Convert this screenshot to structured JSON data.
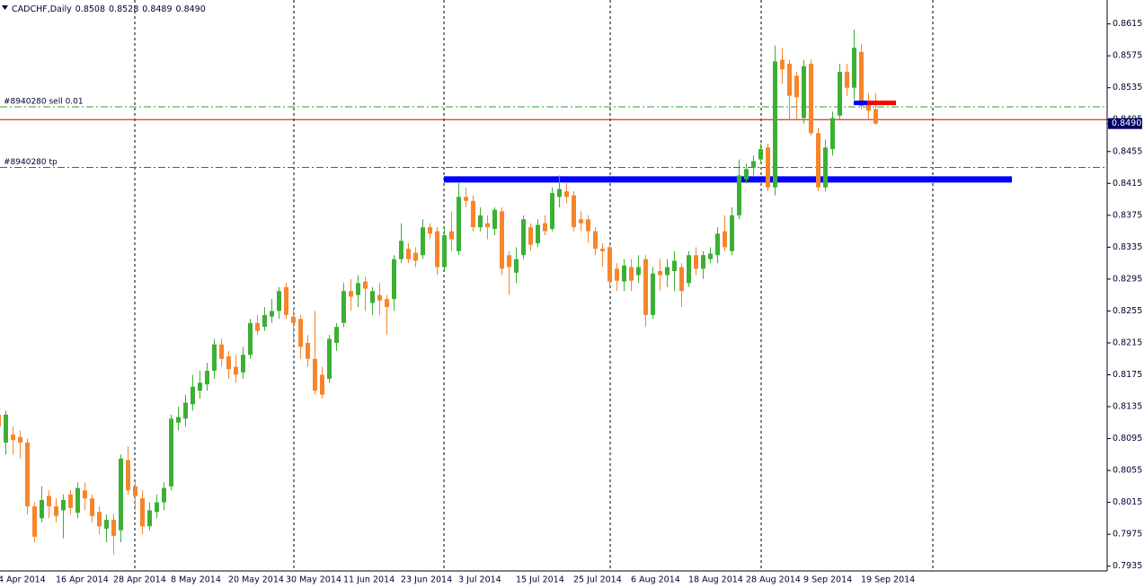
{
  "chart_data": {
    "type": "candlestick",
    "title": "CADCHF,Daily",
    "header_values": [
      "0.8508",
      "0.8528",
      "0.8489",
      "0.8490"
    ],
    "up_color": "#3cb034",
    "down_color": "#f7852a",
    "ylim": [
      0.7929,
      0.8645
    ],
    "yticks": [
      0.7935,
      0.7975,
      0.8015,
      0.8055,
      0.8095,
      0.8135,
      0.8175,
      0.8215,
      0.8255,
      0.8295,
      0.8335,
      0.8375,
      0.8415,
      0.8455,
      0.8495,
      0.8535,
      0.8575,
      0.8615
    ],
    "price": {
      "value": 0.849,
      "label": "0.8490"
    },
    "levels": [
      {
        "label": "#8940280 sell 0.01",
        "value": 0.8511,
        "color": "#2ca02c",
        "style": "dashdot"
      },
      {
        "label": "#8940280 tp",
        "value": 0.8435,
        "color": "#d62728",
        "style": "dashdot"
      },
      {
        "value": 0.8495,
        "color": "#d00000",
        "style": "solid"
      }
    ],
    "zone": {
      "value": 0.842,
      "color": "#0000ff"
    },
    "markers": [
      {
        "value": 0.8516,
        "color": "#0000ff"
      },
      {
        "value": 0.8516,
        "color": "#ff0000"
      }
    ],
    "candles": [
      {
        "date": "4 Apr 2014",
        "o": 0.8125,
        "h": 0.8135,
        "l": 0.8095,
        "c": 0.811
      },
      {
        "date": null,
        "o": 0.809,
        "h": 0.813,
        "l": 0.8075,
        "c": 0.8125
      },
      {
        "date": null,
        "o": 0.81,
        "h": 0.811,
        "l": 0.8075,
        "c": 0.8093
      },
      {
        "date": null,
        "o": 0.8097,
        "h": 0.8105,
        "l": 0.807,
        "c": 0.809
      },
      {
        "date": null,
        "o": 0.809,
        "h": 0.8095,
        "l": 0.8,
        "c": 0.801
      },
      {
        "date": null,
        "o": 0.801,
        "h": 0.8015,
        "l": 0.7965,
        "c": 0.7972
      },
      {
        "date": null,
        "o": 0.7995,
        "h": 0.8035,
        "l": 0.799,
        "c": 0.8018
      },
      {
        "date": null,
        "o": 0.8023,
        "h": 0.803,
        "l": 0.7995,
        "c": 0.801
      },
      {
        "date": "16 Apr 2014",
        "o": 0.801,
        "h": 0.802,
        "l": 0.799,
        "c": 0.7998
      },
      {
        "date": null,
        "o": 0.8005,
        "h": 0.8025,
        "l": 0.797,
        "c": 0.8018
      },
      {
        "date": null,
        "o": 0.8025,
        "h": 0.803,
        "l": 0.8,
        "c": 0.8008
      },
      {
        "date": null,
        "o": 0.8002,
        "h": 0.804,
        "l": 0.7995,
        "c": 0.8033
      },
      {
        "date": null,
        "o": 0.803,
        "h": 0.804,
        "l": 0.8005,
        "c": 0.802
      },
      {
        "date": null,
        "o": 0.802,
        "h": 0.8025,
        "l": 0.799,
        "c": 0.7998
      },
      {
        "date": null,
        "o": 0.8003,
        "h": 0.801,
        "l": 0.7975,
        "c": 0.7985
      },
      {
        "date": null,
        "o": 0.7982,
        "h": 0.8,
        "l": 0.7965,
        "c": 0.7993
      },
      {
        "date": "28 Apr 2014",
        "o": 0.7993,
        "h": 0.8,
        "l": 0.795,
        "c": 0.7973
      },
      {
        "date": null,
        "o": 0.798,
        "h": 0.8075,
        "l": 0.7965,
        "c": 0.807
      },
      {
        "date": null,
        "o": 0.8068,
        "h": 0.8085,
        "l": 0.8025,
        "c": 0.803
      },
      {
        "date": null,
        "o": 0.8035,
        "h": 0.804,
        "l": 0.8005,
        "c": 0.8023
      },
      {
        "date": null,
        "o": 0.802,
        "h": 0.803,
        "l": 0.7975,
        "c": 0.7985
      },
      {
        "date": null,
        "o": 0.7985,
        "h": 0.8015,
        "l": 0.798,
        "c": 0.8005
      },
      {
        "date": null,
        "o": 0.8003,
        "h": 0.8025,
        "l": 0.7995,
        "c": 0.8015
      },
      {
        "date": null,
        "o": 0.8015,
        "h": 0.804,
        "l": 0.8005,
        "c": 0.8033
      },
      {
        "date": "8 May 2014",
        "o": 0.8035,
        "h": 0.8125,
        "l": 0.803,
        "c": 0.812
      },
      {
        "date": null,
        "o": 0.8115,
        "h": 0.8135,
        "l": 0.8105,
        "c": 0.8122
      },
      {
        "date": null,
        "o": 0.812,
        "h": 0.815,
        "l": 0.811,
        "c": 0.814
      },
      {
        "date": null,
        "o": 0.8138,
        "h": 0.8175,
        "l": 0.813,
        "c": 0.816
      },
      {
        "date": null,
        "o": 0.8155,
        "h": 0.818,
        "l": 0.8145,
        "c": 0.8165
      },
      {
        "date": null,
        "o": 0.8163,
        "h": 0.819,
        "l": 0.8155,
        "c": 0.818
      },
      {
        "date": null,
        "o": 0.818,
        "h": 0.822,
        "l": 0.817,
        "c": 0.8213
      },
      {
        "date": null,
        "o": 0.8213,
        "h": 0.822,
        "l": 0.8185,
        "c": 0.8195
      },
      {
        "date": "20 May 2014",
        "o": 0.8198,
        "h": 0.8205,
        "l": 0.817,
        "c": 0.8182
      },
      {
        "date": null,
        "o": 0.8185,
        "h": 0.82,
        "l": 0.8165,
        "c": 0.8175
      },
      {
        "date": null,
        "o": 0.8178,
        "h": 0.821,
        "l": 0.817,
        "c": 0.82
      },
      {
        "date": null,
        "o": 0.82,
        "h": 0.8245,
        "l": 0.8195,
        "c": 0.824
      },
      {
        "date": null,
        "o": 0.824,
        "h": 0.825,
        "l": 0.8225,
        "c": 0.823
      },
      {
        "date": null,
        "o": 0.8235,
        "h": 0.826,
        "l": 0.823,
        "c": 0.825
      },
      {
        "date": null,
        "o": 0.8248,
        "h": 0.827,
        "l": 0.824,
        "c": 0.8255
      },
      {
        "date": null,
        "o": 0.8255,
        "h": 0.8285,
        "l": 0.8245,
        "c": 0.828
      },
      {
        "date": "30 May 2014",
        "o": 0.8285,
        "h": 0.829,
        "l": 0.8245,
        "c": 0.825
      },
      {
        "date": null,
        "o": 0.8248,
        "h": 0.826,
        "l": 0.8215,
        "c": 0.824
      },
      {
        "date": null,
        "o": 0.8245,
        "h": 0.825,
        "l": 0.8195,
        "c": 0.821
      },
      {
        "date": null,
        "o": 0.8215,
        "h": 0.8225,
        "l": 0.8185,
        "c": 0.8195
      },
      {
        "date": null,
        "o": 0.8195,
        "h": 0.8255,
        "l": 0.815,
        "c": 0.8155
      },
      {
        "date": null,
        "o": 0.8175,
        "h": 0.8185,
        "l": 0.8145,
        "c": 0.815
      },
      {
        "date": null,
        "o": 0.817,
        "h": 0.8225,
        "l": 0.8165,
        "c": 0.822
      },
      {
        "date": null,
        "o": 0.8215,
        "h": 0.824,
        "l": 0.8205,
        "c": 0.8235
      },
      {
        "date": "11 Jun 2014",
        "o": 0.824,
        "h": 0.829,
        "l": 0.8235,
        "c": 0.828
      },
      {
        "date": null,
        "o": 0.828,
        "h": 0.8295,
        "l": 0.8255,
        "c": 0.8273
      },
      {
        "date": null,
        "o": 0.8275,
        "h": 0.83,
        "l": 0.826,
        "c": 0.829
      },
      {
        "date": null,
        "o": 0.8292,
        "h": 0.8298,
        "l": 0.8255,
        "c": 0.8283
      },
      {
        "date": null,
        "o": 0.8265,
        "h": 0.8285,
        "l": 0.825,
        "c": 0.828
      },
      {
        "date": null,
        "o": 0.8275,
        "h": 0.829,
        "l": 0.825,
        "c": 0.8268
      },
      {
        "date": null,
        "o": 0.827,
        "h": 0.8275,
        "l": 0.8225,
        "c": 0.826
      },
      {
        "date": null,
        "o": 0.827,
        "h": 0.8325,
        "l": 0.8255,
        "c": 0.832
      },
      {
        "date": "23 Jun 2014",
        "o": 0.832,
        "h": 0.8365,
        "l": 0.8315,
        "c": 0.8343
      },
      {
        "date": null,
        "o": 0.8333,
        "h": 0.834,
        "l": 0.8315,
        "c": 0.832
      },
      {
        "date": null,
        "o": 0.8328,
        "h": 0.8335,
        "l": 0.831,
        "c": 0.8318
      },
      {
        "date": null,
        "o": 0.8325,
        "h": 0.837,
        "l": 0.832,
        "c": 0.836
      },
      {
        "date": null,
        "o": 0.836,
        "h": 0.8365,
        "l": 0.8345,
        "c": 0.8352
      },
      {
        "date": null,
        "o": 0.8355,
        "h": 0.836,
        "l": 0.83,
        "c": 0.831
      },
      {
        "date": null,
        "o": 0.831,
        "h": 0.836,
        "l": 0.8305,
        "c": 0.835
      },
      {
        "date": null,
        "o": 0.8355,
        "h": 0.838,
        "l": 0.833,
        "c": 0.8345
      },
      {
        "date": "3 Jul 2014",
        "o": 0.833,
        "h": 0.8415,
        "l": 0.8325,
        "c": 0.8398
      },
      {
        "date": null,
        "o": 0.8398,
        "h": 0.841,
        "l": 0.8385,
        "c": 0.8393
      },
      {
        "date": null,
        "o": 0.8393,
        "h": 0.84,
        "l": 0.8355,
        "c": 0.836
      },
      {
        "date": null,
        "o": 0.836,
        "h": 0.8385,
        "l": 0.8355,
        "c": 0.8375
      },
      {
        "date": null,
        "o": 0.8365,
        "h": 0.8375,
        "l": 0.8345,
        "c": 0.836
      },
      {
        "date": null,
        "o": 0.8358,
        "h": 0.8385,
        "l": 0.835,
        "c": 0.8382
      },
      {
        "date": null,
        "o": 0.838,
        "h": 0.8385,
        "l": 0.83,
        "c": 0.8308
      },
      {
        "date": null,
        "o": 0.8325,
        "h": 0.833,
        "l": 0.8275,
        "c": 0.831
      },
      {
        "date": "15 Jul 2014",
        "o": 0.8303,
        "h": 0.8335,
        "l": 0.829,
        "c": 0.832
      },
      {
        "date": null,
        "o": 0.8325,
        "h": 0.8375,
        "l": 0.832,
        "c": 0.837
      },
      {
        "date": null,
        "o": 0.836,
        "h": 0.8365,
        "l": 0.833,
        "c": 0.8338
      },
      {
        "date": null,
        "o": 0.834,
        "h": 0.837,
        "l": 0.8335,
        "c": 0.8363
      },
      {
        "date": null,
        "o": 0.8365,
        "h": 0.8375,
        "l": 0.835,
        "c": 0.8355
      },
      {
        "date": null,
        "o": 0.8358,
        "h": 0.841,
        "l": 0.8355,
        "c": 0.8403
      },
      {
        "date": null,
        "o": 0.8398,
        "h": 0.8425,
        "l": 0.8385,
        "c": 0.8408
      },
      {
        "date": null,
        "o": 0.8405,
        "h": 0.8415,
        "l": 0.839,
        "c": 0.8398
      },
      {
        "date": "25 Jul 2014",
        "o": 0.84,
        "h": 0.8405,
        "l": 0.8355,
        "c": 0.836
      },
      {
        "date": null,
        "o": 0.837,
        "h": 0.838,
        "l": 0.8355,
        "c": 0.8365
      },
      {
        "date": null,
        "o": 0.837,
        "h": 0.8375,
        "l": 0.834,
        "c": 0.8355
      },
      {
        "date": null,
        "o": 0.8355,
        "h": 0.836,
        "l": 0.8325,
        "c": 0.8333
      },
      {
        "date": null,
        "o": 0.8333,
        "h": 0.834,
        "l": 0.831,
        "c": 0.833
      },
      {
        "date": null,
        "o": 0.8335,
        "h": 0.834,
        "l": 0.8285,
        "c": 0.8292
      },
      {
        "date": null,
        "o": 0.8308,
        "h": 0.8315,
        "l": 0.828,
        "c": 0.8293
      },
      {
        "date": null,
        "o": 0.8292,
        "h": 0.832,
        "l": 0.828,
        "c": 0.8312
      },
      {
        "date": "6 Aug 2014",
        "o": 0.831,
        "h": 0.832,
        "l": 0.828,
        "c": 0.8293
      },
      {
        "date": null,
        "o": 0.83,
        "h": 0.8325,
        "l": 0.829,
        "c": 0.831
      },
      {
        "date": null,
        "o": 0.832,
        "h": 0.8325,
        "l": 0.8235,
        "c": 0.825
      },
      {
        "date": null,
        "o": 0.825,
        "h": 0.831,
        "l": 0.8245,
        "c": 0.8302
      },
      {
        "date": null,
        "o": 0.8305,
        "h": 0.832,
        "l": 0.828,
        "c": 0.83
      },
      {
        "date": null,
        "o": 0.83,
        "h": 0.832,
        "l": 0.8285,
        "c": 0.831
      },
      {
        "date": null,
        "o": 0.8305,
        "h": 0.833,
        "l": 0.828,
        "c": 0.8318
      },
      {
        "date": null,
        "o": 0.831,
        "h": 0.8315,
        "l": 0.826,
        "c": 0.828
      },
      {
        "date": "18 Aug 2014",
        "o": 0.829,
        "h": 0.833,
        "l": 0.8285,
        "c": 0.8325
      },
      {
        "date": null,
        "o": 0.8325,
        "h": 0.8335,
        "l": 0.83,
        "c": 0.8308
      },
      {
        "date": null,
        "o": 0.8308,
        "h": 0.833,
        "l": 0.8295,
        "c": 0.8325
      },
      {
        "date": null,
        "o": 0.832,
        "h": 0.8335,
        "l": 0.8315,
        "c": 0.8327
      },
      {
        "date": null,
        "o": 0.8325,
        "h": 0.836,
        "l": 0.8315,
        "c": 0.8352
      },
      {
        "date": null,
        "o": 0.8355,
        "h": 0.8375,
        "l": 0.833,
        "c": 0.8335
      },
      {
        "date": null,
        "o": 0.833,
        "h": 0.8385,
        "l": 0.8325,
        "c": 0.8375
      },
      {
        "date": null,
        "o": 0.8375,
        "h": 0.8445,
        "l": 0.837,
        "c": 0.8425
      },
      {
        "date": "28 Aug 2014",
        "o": 0.842,
        "h": 0.844,
        "l": 0.8415,
        "c": 0.8433
      },
      {
        "date": null,
        "o": 0.8435,
        "h": 0.845,
        "l": 0.8425,
        "c": 0.8443
      },
      {
        "date": null,
        "o": 0.8445,
        "h": 0.8465,
        "l": 0.844,
        "c": 0.8458
      },
      {
        "date": null,
        "o": 0.846,
        "h": 0.8465,
        "l": 0.8405,
        "c": 0.841
      },
      {
        "date": null,
        "o": 0.841,
        "h": 0.8588,
        "l": 0.84,
        "c": 0.8568
      },
      {
        "date": null,
        "o": 0.857,
        "h": 0.8585,
        "l": 0.854,
        "c": 0.8558
      },
      {
        "date": null,
        "o": 0.8565,
        "h": 0.857,
        "l": 0.8495,
        "c": 0.8525
      },
      {
        "date": null,
        "o": 0.855,
        "h": 0.8555,
        "l": 0.8495,
        "c": 0.8523
      },
      {
        "date": "9 Sep 2014",
        "o": 0.8497,
        "h": 0.857,
        "l": 0.849,
        "c": 0.8562
      },
      {
        "date": null,
        "o": 0.8565,
        "h": 0.857,
        "l": 0.8475,
        "c": 0.8478
      },
      {
        "date": null,
        "o": 0.8478,
        "h": 0.8485,
        "l": 0.8405,
        "c": 0.841
      },
      {
        "date": null,
        "o": 0.841,
        "h": 0.847,
        "l": 0.8405,
        "c": 0.846
      },
      {
        "date": null,
        "o": 0.8458,
        "h": 0.8505,
        "l": 0.845,
        "c": 0.8497
      },
      {
        "date": null,
        "o": 0.85,
        "h": 0.8565,
        "l": 0.8495,
        "c": 0.8555
      },
      {
        "date": null,
        "o": 0.8555,
        "h": 0.8565,
        "l": 0.8525,
        "c": 0.8535
      },
      {
        "date": null,
        "o": 0.8535,
        "h": 0.8608,
        "l": 0.852,
        "c": 0.8585
      },
      {
        "date": "19 Sep 2014",
        "o": 0.858,
        "h": 0.859,
        "l": 0.8508,
        "c": 0.8512
      },
      {
        "date": null,
        "o": 0.8518,
        "h": 0.8528,
        "l": 0.8495,
        "c": 0.8506
      },
      {
        "date": null,
        "o": 0.8508,
        "h": 0.8528,
        "l": 0.8489,
        "c": 0.849
      }
    ]
  }
}
